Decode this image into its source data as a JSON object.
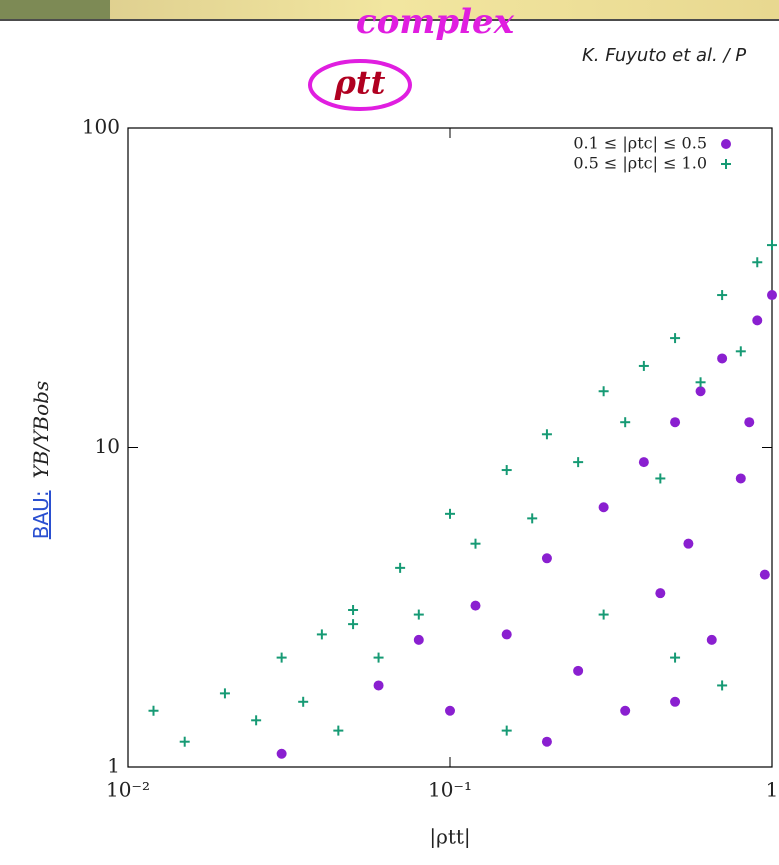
{
  "chart_data": {
    "type": "scatter",
    "annotations": [
      "complex",
      "ρtt"
    ],
    "citation": "K. Fuyuto et al. / P",
    "xlabel": "|ρtt|",
    "ylabel_note": "BAU:",
    "ylabel": "YB/YBobs",
    "xscale": "log",
    "yscale": "log",
    "xlim": [
      0.01,
      1
    ],
    "ylim": [
      1,
      100
    ],
    "xticks": [
      {
        "value": 0.01,
        "label": "10⁻²"
      },
      {
        "value": 0.1,
        "label": "10⁻¹"
      },
      1
    ],
    "yticks": [
      1,
      10,
      100
    ],
    "legend": "upper right",
    "series": [
      {
        "name": "0.1 ≤ |ρtc| ≤ 0.5",
        "color": "#8a1fd0",
        "marker": "circle",
        "x": [
          0.03,
          0.06,
          0.08,
          0.1,
          0.12,
          0.15,
          0.2,
          0.25,
          0.3,
          0.35,
          0.4,
          0.45,
          0.5,
          0.55,
          0.6,
          0.65,
          0.7,
          0.8,
          0.9,
          0.95,
          1.0,
          0.2,
          0.5,
          0.85
        ],
        "y": [
          1.1,
          1.8,
          2.5,
          1.5,
          3.2,
          2.6,
          4.5,
          2.0,
          6.5,
          1.5,
          9,
          3.5,
          12,
          5,
          15,
          2.5,
          19,
          8,
          25,
          4,
          30,
          1.2,
          1.6,
          12
        ]
      },
      {
        "name": "0.5 ≤ |ρtc| ≤ 1.0",
        "color": "#169a74",
        "marker": "plus",
        "x": [
          0.012,
          0.015,
          0.02,
          0.025,
          0.03,
          0.035,
          0.04,
          0.05,
          0.06,
          0.07,
          0.08,
          0.1,
          0.12,
          0.15,
          0.18,
          0.2,
          0.25,
          0.3,
          0.35,
          0.4,
          0.45,
          0.5,
          0.6,
          0.7,
          0.8,
          0.9,
          1.0,
          0.3,
          0.5,
          0.7,
          0.05,
          0.045,
          0.15
        ],
        "y": [
          1.5,
          1.2,
          1.7,
          1.4,
          2.2,
          1.6,
          2.6,
          3.1,
          2.2,
          4.2,
          3.0,
          6.2,
          5.0,
          8.5,
          6.0,
          11,
          9,
          15,
          12,
          18,
          8,
          22,
          16,
          30,
          20,
          38,
          43,
          3,
          2.2,
          1.8,
          2.8,
          1.3,
          1.3
        ]
      }
    ]
  }
}
